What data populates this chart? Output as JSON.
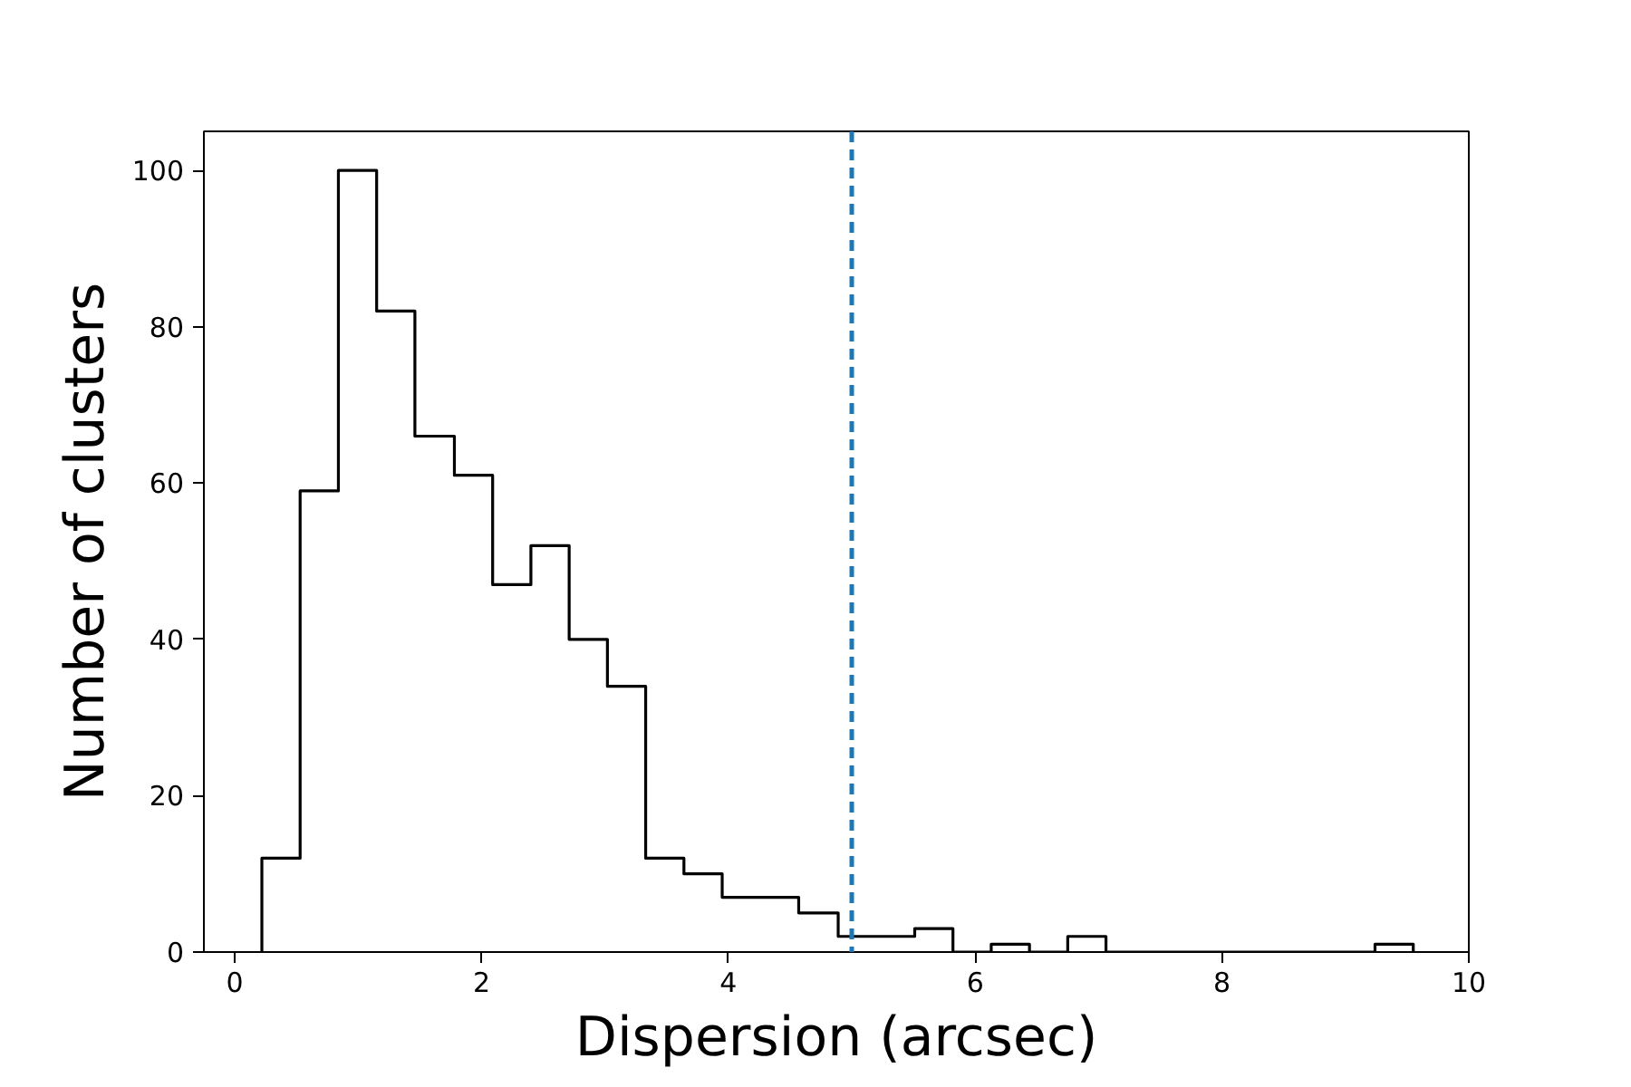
{
  "chart_data": {
    "type": "histogram",
    "xlabel": "Dispersion (arcsec)",
    "ylabel": "Number of clusters",
    "bins": [
      0.22,
      0.53,
      0.84,
      1.15,
      1.46,
      1.78,
      2.09,
      2.4,
      2.71,
      3.02,
      3.33,
      3.64,
      3.95,
      4.26,
      4.57,
      4.89,
      5.2,
      5.51,
      5.82,
      6.13,
      6.44,
      6.75,
      7.06,
      7.37,
      7.68,
      8.0,
      8.31,
      8.62,
      8.93,
      9.24,
      9.55
    ],
    "values": [
      12,
      59,
      100,
      82,
      66,
      61,
      47,
      52,
      40,
      34,
      12,
      10,
      7,
      7,
      5,
      2,
      2,
      3,
      0,
      1,
      0,
      2,
      0,
      0,
      0,
      0,
      0,
      0,
      0,
      1
    ],
    "color": "#000000",
    "xlim": [
      -0.25,
      10
    ],
    "xticks": [
      0,
      2,
      4,
      6,
      8,
      10
    ],
    "ylim": [
      0,
      105
    ],
    "yticks": [
      0,
      20,
      40,
      60,
      80,
      100
    ],
    "grid": false,
    "ref_lines": [
      {
        "axis": "x",
        "value": 5,
        "color": "#1f77b4",
        "line_style": "dashed"
      }
    ]
  }
}
